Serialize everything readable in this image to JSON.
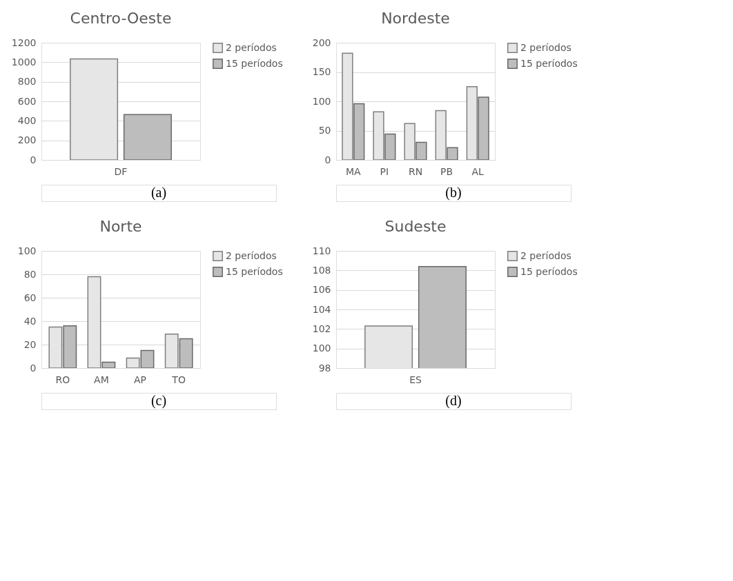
{
  "chart_data": [
    {
      "type": "bar",
      "title": "Centro-Oeste",
      "categories": [
        "DF"
      ],
      "series": [
        {
          "name": "2 períodos",
          "color": "#e6e6e6",
          "values": [
            1035
          ]
        },
        {
          "name": "15 períodos",
          "color": "#bdbdbd",
          "values": [
            465
          ]
        }
      ],
      "ylim": [
        0,
        1200
      ],
      "yticks": [
        0,
        200,
        400,
        600,
        800,
        1000,
        1200
      ],
      "grid": "y",
      "legend": "right",
      "annotations": [
        "(a)"
      ]
    },
    {
      "type": "bar",
      "title": "Nordeste",
      "categories": [
        "MA",
        "PI",
        "RN",
        "PB",
        "AL"
      ],
      "series": [
        {
          "name": "2 períodos",
          "color": "#e6e6e6",
          "values": [
            182,
            82,
            62,
            84,
            125
          ]
        },
        {
          "name": "15 períodos",
          "color": "#bdbdbd",
          "values": [
            96,
            44,
            30,
            21,
            107
          ]
        }
      ],
      "ylim": [
        0,
        200
      ],
      "yticks": [
        0,
        50,
        100,
        150,
        200
      ],
      "grid": "y",
      "legend": "right",
      "annotations": [
        "(b)"
      ]
    },
    {
      "type": "bar",
      "title": "Norte",
      "categories": [
        "RO",
        "AM",
        "AP",
        "TO"
      ],
      "series": [
        {
          "name": "2 períodos",
          "color": "#e6e6e6",
          "values": [
            35,
            78,
            8.5,
            29
          ]
        },
        {
          "name": "15 períodos",
          "color": "#bdbdbd",
          "values": [
            36,
            5,
            15,
            25
          ]
        }
      ],
      "ylim": [
        0,
        100
      ],
      "yticks": [
        0,
        20,
        40,
        60,
        80,
        100
      ],
      "grid": "y",
      "legend": "right",
      "annotations": [
        "(c)"
      ]
    },
    {
      "type": "bar",
      "title": "Sudeste",
      "categories": [
        "ES"
      ],
      "series": [
        {
          "name": "2 períodos",
          "color": "#e6e6e6",
          "values": [
            102.3
          ]
        },
        {
          "name": "15 períodos",
          "color": "#bdbdbd",
          "values": [
            108.4
          ]
        }
      ],
      "ylim": [
        98,
        110
      ],
      "yticks": [
        98,
        100,
        102,
        104,
        106,
        108,
        110
      ],
      "grid": "y",
      "legend": "right",
      "annotations": [
        "(d)"
      ]
    }
  ]
}
